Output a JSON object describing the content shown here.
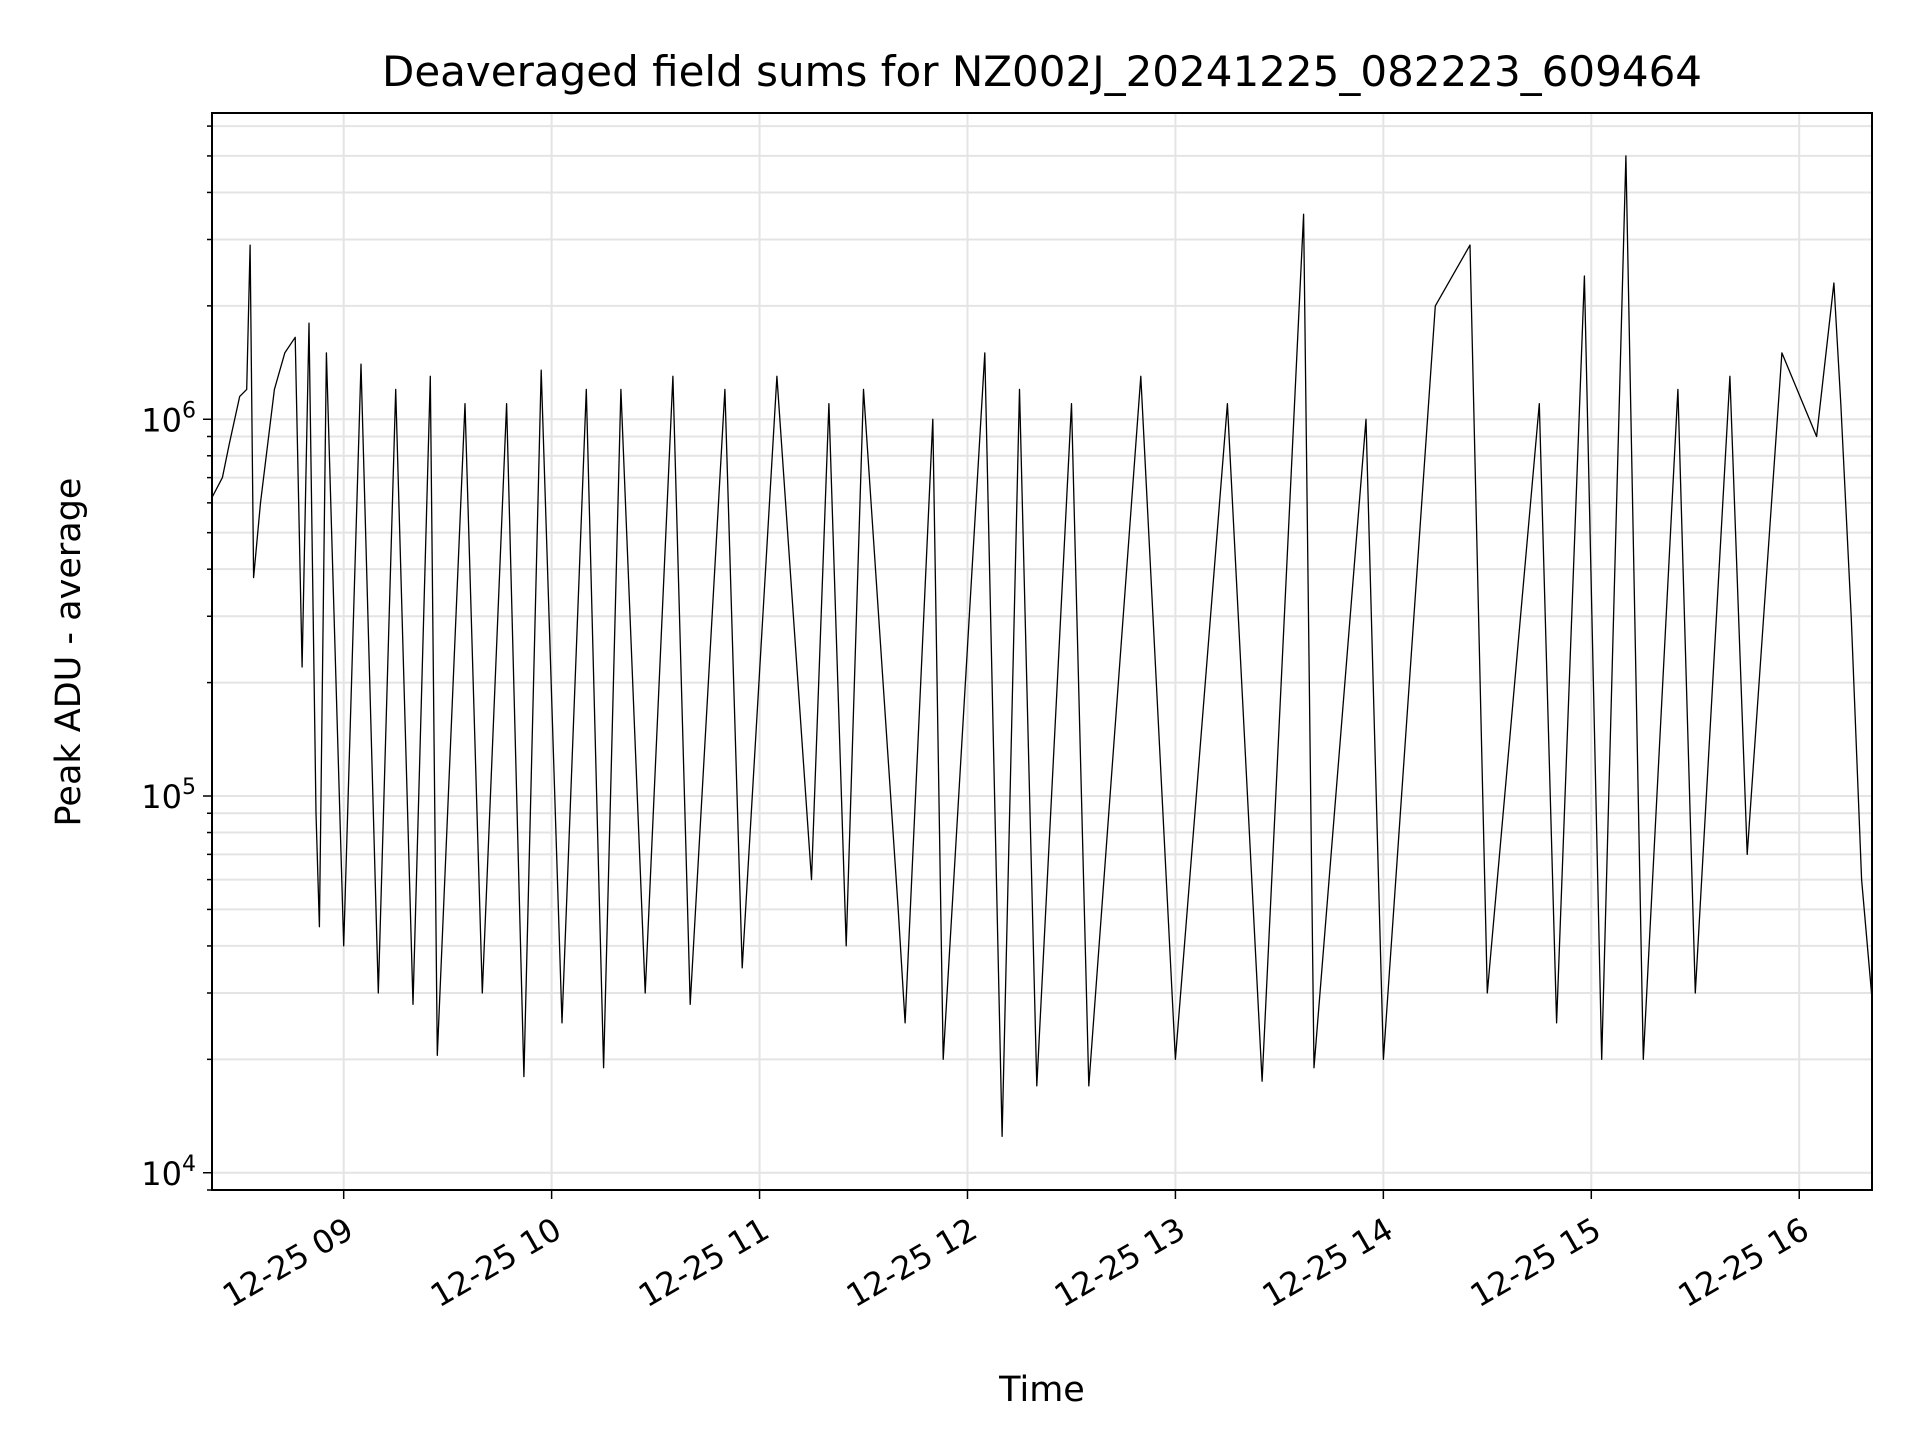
{
  "chart_data": {
    "type": "line",
    "title": "Deaveraged field sums for NZ002J_20241225_082223_609464",
    "xlabel": "Time",
    "ylabel": "Peak ADU - average",
    "yscale": "log",
    "ylim": [
      9000,
      6500000
    ],
    "xlim": [
      "2024-12-25 08:22",
      "2024-12-25 16:21"
    ],
    "x_ticks": [
      "12-25 09",
      "12-25 10",
      "12-25 11",
      "12-25 12",
      "12-25 13",
      "12-25 14",
      "12-25 15",
      "12-25 16"
    ],
    "y_ticks": [
      {
        "base": "10",
        "exp": "4",
        "value": 10000
      },
      {
        "base": "10",
        "exp": "5",
        "value": 100000
      },
      {
        "base": "10",
        "exp": "6",
        "value": 1000000
      }
    ],
    "grid": true,
    "line_color": "#000000",
    "series": [
      {
        "points": [
          [
            "2024-12-25 08:22",
            620000
          ],
          [
            "2024-12-25 08:25",
            700000
          ],
          [
            "2024-12-25 08:27",
            860000
          ],
          [
            "2024-12-25 08:30",
            1150000
          ],
          [
            "2024-12-25 08:32",
            1200000
          ],
          [
            "2024-12-25 08:33",
            2900000
          ],
          [
            "2024-12-25 08:34",
            380000
          ],
          [
            "2024-12-25 08:36",
            600000
          ],
          [
            "2024-12-25 08:40",
            1200000
          ],
          [
            "2024-12-25 08:43",
            1500000
          ],
          [
            "2024-12-25 08:46",
            1650000
          ],
          [
            "2024-12-25 08:48",
            220000
          ],
          [
            "2024-12-25 08:50",
            1800000
          ],
          [
            "2024-12-25 08:52",
            90000
          ],
          [
            "2024-12-25 08:53",
            45000
          ],
          [
            "2024-12-25 08:55",
            1500000
          ],
          [
            "2024-12-25 09:00",
            40000
          ],
          [
            "2024-12-25 09:05",
            1400000
          ],
          [
            "2024-12-25 09:10",
            30000
          ],
          [
            "2024-12-25 09:15",
            1200000
          ],
          [
            "2024-12-25 09:20",
            28000
          ],
          [
            "2024-12-25 09:25",
            1300000
          ],
          [
            "2024-12-25 09:27",
            20500
          ],
          [
            "2024-12-25 09:35",
            1100000
          ],
          [
            "2024-12-25 09:40",
            30000
          ],
          [
            "2024-12-25 09:47",
            1100000
          ],
          [
            "2024-12-25 09:52",
            18000
          ],
          [
            "2024-12-25 09:57",
            1350000
          ],
          [
            "2024-12-25 10:03",
            25000
          ],
          [
            "2024-12-25 10:10",
            1200000
          ],
          [
            "2024-12-25 10:15",
            19000
          ],
          [
            "2024-12-25 10:20",
            1200000
          ],
          [
            "2024-12-25 10:27",
            30000
          ],
          [
            "2024-12-25 10:35",
            1300000
          ],
          [
            "2024-12-25 10:40",
            28000
          ],
          [
            "2024-12-25 10:50",
            1200000
          ],
          [
            "2024-12-25 10:55",
            35000
          ],
          [
            "2024-12-25 11:05",
            1300000
          ],
          [
            "2024-12-25 11:15",
            60000
          ],
          [
            "2024-12-25 11:20",
            1100000
          ],
          [
            "2024-12-25 11:25",
            40000
          ],
          [
            "2024-12-25 11:30",
            1200000
          ],
          [
            "2024-12-25 11:40",
            50000
          ],
          [
            "2024-12-25 11:42",
            25000
          ],
          [
            "2024-12-25 11:50",
            1000000
          ],
          [
            "2024-12-25 11:53",
            20000
          ],
          [
            "2024-12-25 12:05",
            1500000
          ],
          [
            "2024-12-25 12:10",
            12500
          ],
          [
            "2024-12-25 12:15",
            1200000
          ],
          [
            "2024-12-25 12:20",
            17000
          ],
          [
            "2024-12-25 12:30",
            1100000
          ],
          [
            "2024-12-25 12:35",
            17000
          ],
          [
            "2024-12-25 12:50",
            1300000
          ],
          [
            "2024-12-25 13:00",
            20000
          ],
          [
            "2024-12-25 13:15",
            1100000
          ],
          [
            "2024-12-25 13:25",
            17500
          ],
          [
            "2024-12-25 13:37",
            3500000
          ],
          [
            "2024-12-25 13:40",
            19000
          ],
          [
            "2024-12-25 13:55",
            1000000
          ],
          [
            "2024-12-25 14:00",
            20000
          ],
          [
            "2024-12-25 14:15",
            2000000
          ],
          [
            "2024-12-25 14:25",
            2900000
          ],
          [
            "2024-12-25 14:30",
            30000
          ],
          [
            "2024-12-25 14:45",
            1100000
          ],
          [
            "2024-12-25 14:50",
            25000
          ],
          [
            "2024-12-25 14:58",
            2400000
          ],
          [
            "2024-12-25 15:03",
            20000
          ],
          [
            "2024-12-25 15:10",
            5000000
          ],
          [
            "2024-12-25 15:15",
            20000
          ],
          [
            "2024-12-25 15:25",
            1200000
          ],
          [
            "2024-12-25 15:30",
            30000
          ],
          [
            "2024-12-25 15:40",
            1300000
          ],
          [
            "2024-12-25 15:45",
            70000
          ],
          [
            "2024-12-25 15:55",
            1500000
          ],
          [
            "2024-12-25 16:05",
            900000
          ],
          [
            "2024-12-25 16:10",
            2300000
          ],
          [
            "2024-12-25 16:12",
            1100000
          ],
          [
            "2024-12-25 16:15",
            300000
          ],
          [
            "2024-12-25 16:18",
            60000
          ],
          [
            "2024-12-25 16:21",
            29000
          ]
        ]
      }
    ]
  }
}
